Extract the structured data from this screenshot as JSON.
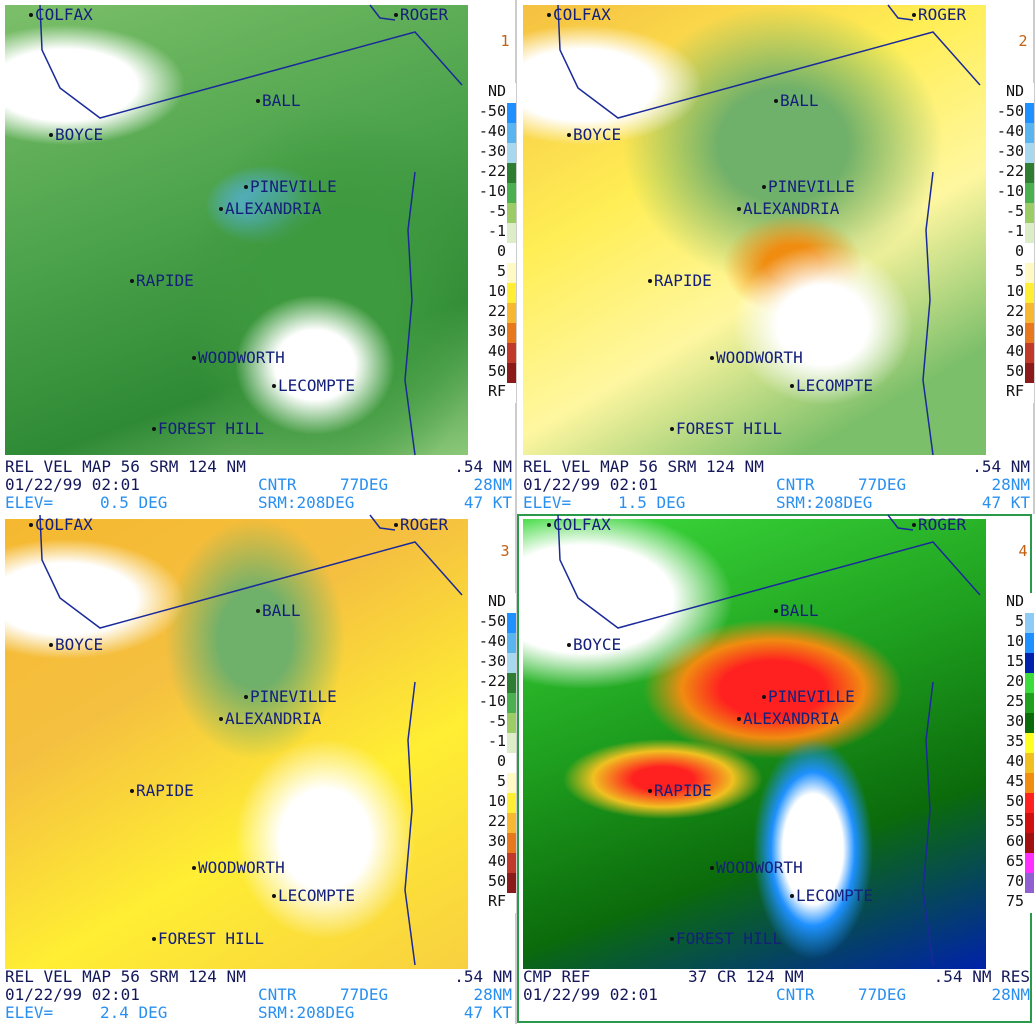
{
  "panels": [
    {
      "number": "1",
      "places": [
        "COLFAX",
        "ROGER",
        "BALL",
        "BOYCE",
        "PINEVILLE",
        "ALEXANDRIA",
        "RAPIDE",
        "WOODWORTH",
        "LECOMPTE",
        "FOREST HILL"
      ],
      "legend": {
        "labels": [
          "ND",
          "-50",
          "-40",
          "-30",
          "-22",
          "-10",
          "-5",
          "-1",
          "0",
          "5",
          "10",
          "22",
          "30",
          "40",
          "50",
          "RF"
        ],
        "colors": [
          "#ffffff",
          "#1e90ff",
          "#5ab4f0",
          "#a8d8f0",
          "#2e7d32",
          "#4caf50",
          "#9ccc65",
          "#dcedc8",
          "#ffffff",
          "#fff9c4",
          "#ffee33",
          "#f5b830",
          "#e8781e",
          "#c0392b",
          "#8b1a1a",
          "#ffffff"
        ]
      },
      "footer": [
        [
          "REL VEL MAP 56 SRM 124 NM",
          ".54 NM"
        ],
        [
          "01/22/99 02:01",
          "CNTR",
          "77DEG",
          "28NM"
        ],
        [
          "ELEV=",
          "0.5 DEG",
          "SRM:208DEG",
          "47 KT"
        ]
      ]
    },
    {
      "number": "2",
      "places": [
        "COLFAX",
        "ROGER",
        "BALL",
        "BOYCE",
        "PINEVILLE",
        "ALEXANDRIA",
        "RAPIDE",
        "WOODWORTH",
        "LECOMPTE",
        "FOREST HILL"
      ],
      "legend": {
        "labels": [
          "ND",
          "-50",
          "-40",
          "-30",
          "-22",
          "-10",
          "-5",
          "-1",
          "0",
          "5",
          "10",
          "22",
          "30",
          "40",
          "50",
          "RF"
        ],
        "colors": [
          "#ffffff",
          "#1e90ff",
          "#5ab4f0",
          "#a8d8f0",
          "#2e7d32",
          "#4caf50",
          "#9ccc65",
          "#dcedc8",
          "#ffffff",
          "#fff9c4",
          "#ffee33",
          "#f5b830",
          "#e8781e",
          "#c0392b",
          "#8b1a1a",
          "#ffffff"
        ]
      },
      "footer": [
        [
          "REL VEL MAP 56 SRM 124 NM",
          ".54 NM"
        ],
        [
          "01/22/99 02:01",
          "CNTR",
          "77DEG",
          "28NM"
        ],
        [
          "ELEV=",
          "1.5 DEG",
          "SRM:208DEG",
          "47 KT"
        ]
      ]
    },
    {
      "number": "3",
      "places": [
        "COLFAX",
        "ROGER",
        "BALL",
        "BOYCE",
        "PINEVILLE",
        "ALEXANDRIA",
        "RAPIDE",
        "WOODWORTH",
        "LECOMPTE",
        "FOREST HILL"
      ],
      "legend": {
        "labels": [
          "ND",
          "-50",
          "-40",
          "-30",
          "-22",
          "-10",
          "-5",
          "-1",
          "0",
          "5",
          "10",
          "22",
          "30",
          "40",
          "50",
          "RF"
        ],
        "colors": [
          "#ffffff",
          "#1e90ff",
          "#5ab4f0",
          "#a8d8f0",
          "#2e7d32",
          "#4caf50",
          "#9ccc65",
          "#dcedc8",
          "#ffffff",
          "#fff9c4",
          "#ffee33",
          "#f5b830",
          "#e8781e",
          "#c0392b",
          "#8b1a1a",
          "#ffffff"
        ]
      },
      "footer": [
        [
          "REL VEL MAP 56 SRM 124 NM",
          ".54 NM"
        ],
        [
          "01/22/99 02:01",
          "CNTR",
          "77DEG",
          "28NM"
        ],
        [
          "ELEV=",
          "2.4 DEG",
          "SRM:208DEG",
          "47 KT"
        ]
      ]
    },
    {
      "number": "4",
      "places": [
        "COLFAX",
        "ROGER",
        "BALL",
        "BOYCE",
        "PINEVILLE",
        "ALEXANDRIA",
        "RAPIDE",
        "WOODWORTH",
        "LECOMPTE",
        "FOREST HILL"
      ],
      "legend": {
        "labels": [
          "ND",
          "5",
          "10",
          "15",
          "20",
          "25",
          "30",
          "35",
          "40",
          "45",
          "50",
          "55",
          "60",
          "65",
          "70",
          "75"
        ],
        "colors": [
          "#ffffff",
          "#8ecbf5",
          "#1e90ff",
          "#0022aa",
          "#3ddc3d",
          "#1fa01f",
          "#0b6b0b",
          "#ffff22",
          "#f0c020",
          "#f08c10",
          "#ff2020",
          "#d01010",
          "#a01010",
          "#ff30ff",
          "#9060d0",
          "#ffffff"
        ]
      },
      "footer": [
        [
          "CMP REF",
          "37 CR 124 NM",
          ".54 NM RES"
        ],
        [
          "01/22/99 02:01",
          "CNTR",
          "77DEG",
          "28NM"
        ]
      ]
    }
  ]
}
